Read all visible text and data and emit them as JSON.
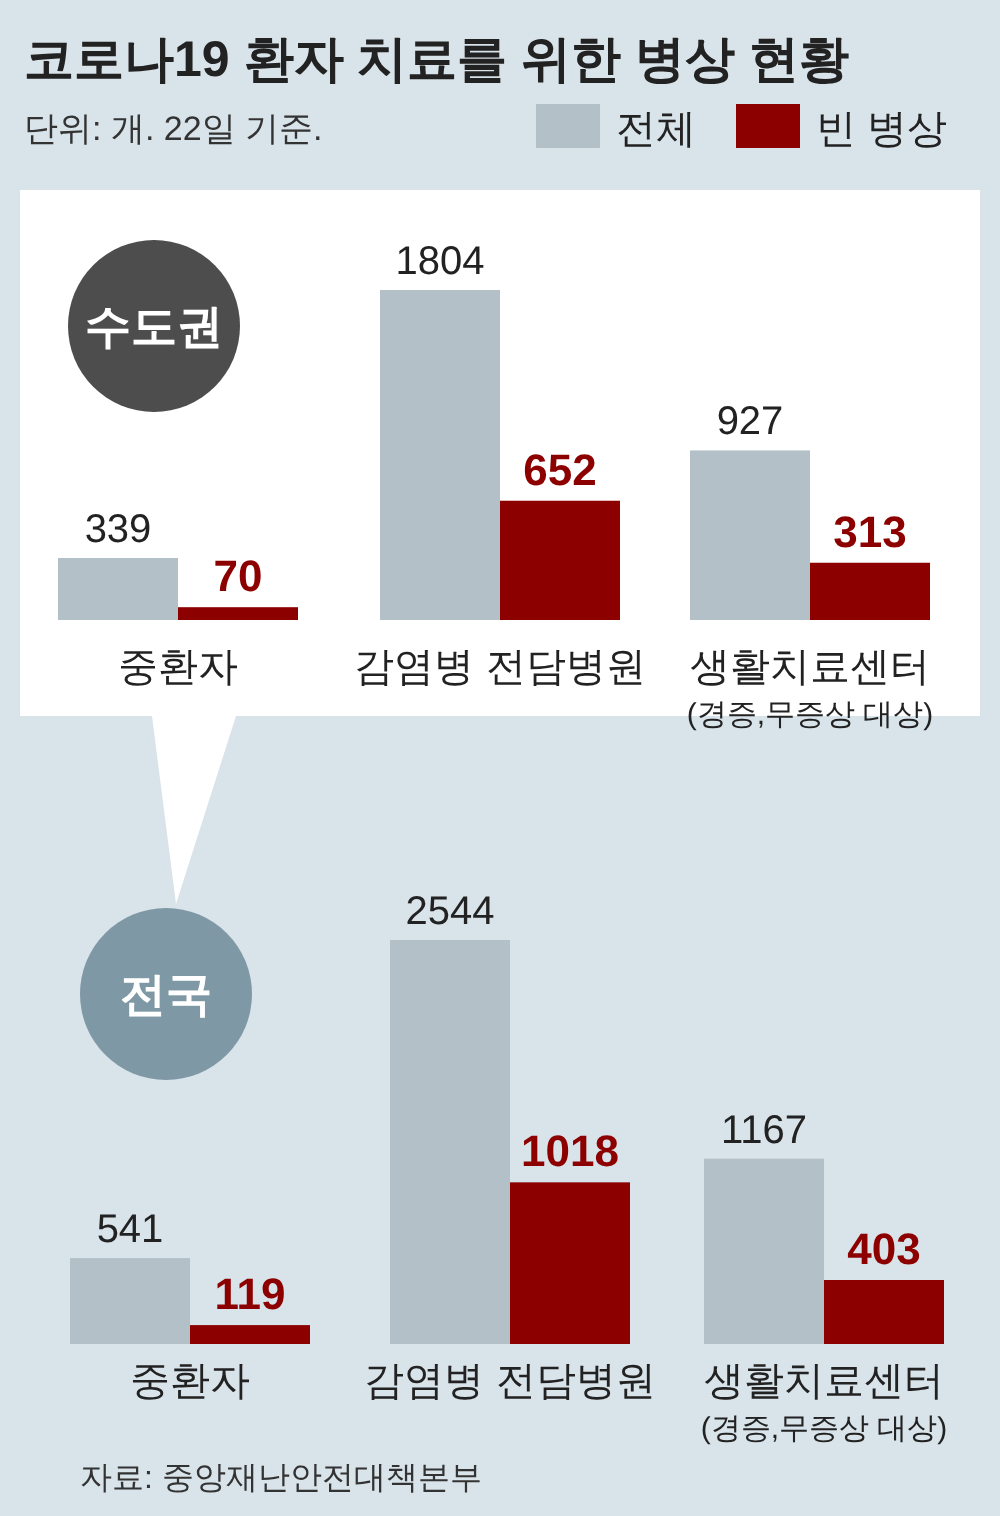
{
  "chart_data": [
    {
      "type": "bar",
      "title": "코로나19 환자 치료를 위한 병상 현황",
      "subtitle": "단위: 개. 22일 기준.",
      "annotations": [
        "수도권"
      ],
      "categories": [
        "중환자",
        "감염병 전담병원",
        "생활치료센터\n(경증,무증상 대상)"
      ],
      "legend": "top right",
      "data_labels": true,
      "series": [
        {
          "name": "전체",
          "color": "#b4c0c8",
          "values": [
            339,
            1804,
            927
          ]
        },
        {
          "name": "빈 병상",
          "color": "#8c0000",
          "values": [
            70,
            652,
            313
          ]
        }
      ]
    },
    {
      "type": "bar",
      "annotations": [
        "전국",
        "자료: 중앙재난안전대책본부"
      ],
      "categories": [
        "중환자",
        "감염병 전담병원",
        "생활치료센터\n(경증,무증상 대상)"
      ],
      "data_labels": true,
      "series": [
        {
          "color": "#b4c0c8",
          "values": [
            541,
            2544,
            1167
          ]
        },
        {
          "color": "#8c0000",
          "values": [
            119,
            1018,
            403
          ]
        }
      ]
    }
  ]
}
